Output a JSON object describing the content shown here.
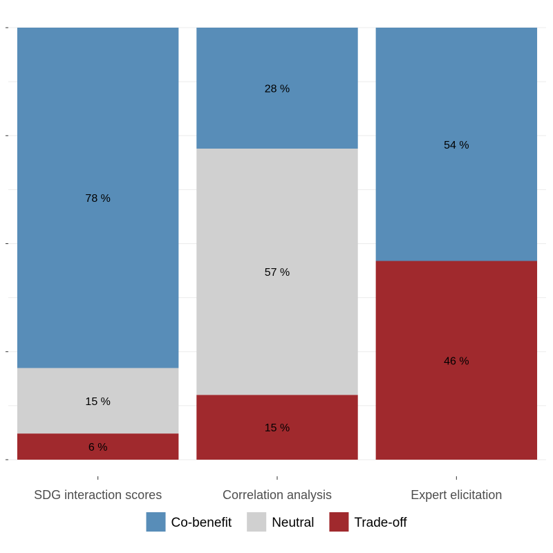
{
  "chart_data": {
    "type": "bar",
    "stacked": true,
    "orientation": "vertical",
    "categories": [
      "SDG interaction scores",
      "Correlation analysis",
      "Expert elicitation"
    ],
    "series": [
      {
        "name": "Trade-off",
        "color": "#a0292d",
        "values": [
          6,
          15,
          46
        ],
        "labels": [
          "6 %",
          "15 %",
          "46 %"
        ]
      },
      {
        "name": "Neutral",
        "color": "#d0d0d0",
        "values": [
          15,
          57,
          0
        ],
        "labels": [
          "15 %",
          "57 %",
          ""
        ]
      },
      {
        "name": "Co-benefit",
        "color": "#588db8",
        "values": [
          78,
          28,
          54
        ],
        "labels": [
          "78 %",
          "28 %",
          "54 %"
        ]
      }
    ],
    "ylim": [
      0,
      100
    ],
    "grid": true,
    "legend": {
      "position": "bottom",
      "order": [
        "Co-benefit",
        "Neutral",
        "Trade-off"
      ]
    }
  }
}
